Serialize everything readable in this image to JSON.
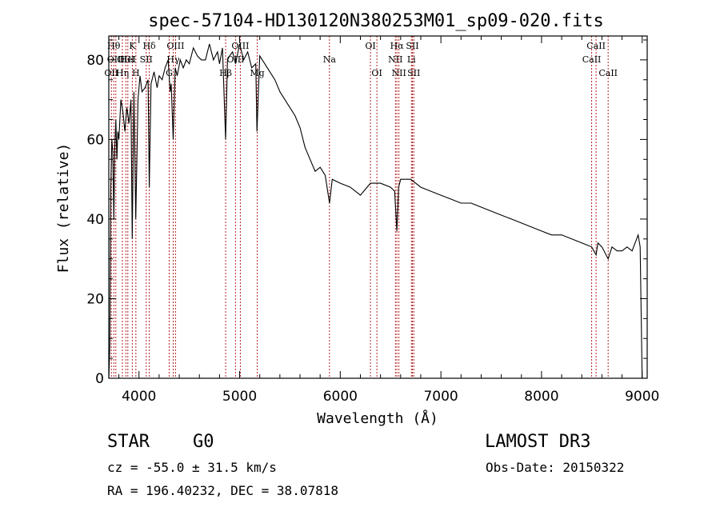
{
  "chart_data": {
    "type": "line",
    "title": "spec-57104-HD130120N380253M01_sp09-020.fits",
    "xlabel": "Wavelength (Å)",
    "ylabel": "Flux (relative)",
    "xlim": [
      3700,
      9050
    ],
    "ylim": [
      0,
      86
    ],
    "xticks": [
      4000,
      5000,
      6000,
      7000,
      8000,
      9000
    ],
    "yticks": [
      0,
      20,
      40,
      60,
      80
    ],
    "series": [
      {
        "name": "flux",
        "x": [
          3700,
          3710,
          3720,
          3730,
          3740,
          3750,
          3760,
          3770,
          3780,
          3790,
          3800,
          3820,
          3840,
          3860,
          3880,
          3900,
          3920,
          3933,
          3950,
          3968,
          3990,
          4010,
          4030,
          4060,
          4090,
          4102,
          4120,
          4150,
          4180,
          4200,
          4230,
          4260,
          4290,
          4310,
          4320,
          4340,
          4360,
          4380,
          4410,
          4440,
          4470,
          4500,
          4540,
          4580,
          4620,
          4660,
          4700,
          4740,
          4780,
          4800,
          4830,
          4861,
          4880,
          4900,
          4930,
          4960,
          5000,
          5040,
          5080,
          5120,
          5160,
          5172,
          5200,
          5250,
          5300,
          5350,
          5400,
          5450,
          5500,
          5550,
          5600,
          5650,
          5700,
          5750,
          5800,
          5850,
          5893,
          5920,
          6000,
          6100,
          6200,
          6300,
          6400,
          6500,
          6540,
          6563,
          6580,
          6600,
          6700,
          6800,
          6900,
          7000,
          7100,
          7200,
          7300,
          7400,
          7500,
          7600,
          7700,
          7800,
          7900,
          8000,
          8100,
          8200,
          8300,
          8400,
          8498,
          8542,
          8560,
          8600,
          8662,
          8700,
          8750,
          8800,
          8850,
          8900,
          8930,
          8960,
          8980,
          9000
        ],
        "values": [
          0,
          8,
          48,
          60,
          57,
          40,
          58,
          65,
          55,
          62,
          60,
          70,
          67,
          62,
          68,
          64,
          70,
          35,
          72,
          40,
          70,
          76,
          72,
          73,
          75,
          48,
          74,
          77,
          73,
          76,
          75,
          78,
          80,
          72,
          74,
          60,
          78,
          76,
          80,
          78,
          80,
          79,
          83,
          81,
          80,
          80,
          84,
          80,
          82,
          79,
          83,
          60,
          80,
          81,
          82,
          79,
          84,
          80,
          82,
          78,
          79,
          62,
          81,
          79,
          77,
          75,
          72,
          70,
          68,
          66,
          63,
          58,
          55,
          52,
          53,
          51,
          44,
          50,
          49,
          48,
          46,
          49,
          49,
          48,
          47,
          37,
          48,
          50,
          50,
          48,
          47,
          46,
          45,
          44,
          44,
          43,
          42,
          41,
          40,
          39,
          38,
          37,
          36,
          36,
          35,
          34,
          33,
          31,
          34,
          33,
          30,
          33,
          32,
          32,
          33,
          32,
          34,
          36,
          33,
          0
        ]
      }
    ],
    "lines": [
      {
        "wl": 3726,
        "label": "OII",
        "row": 3
      },
      {
        "wl": 3750,
        "label": "Hθ",
        "row": 1
      },
      {
        "wl": 3770,
        "label": "OIII",
        "row": 2
      },
      {
        "wl": 3835,
        "label": "Hη",
        "row": 3
      },
      {
        "wl": 3869,
        "label": "OIII",
        "row": 2
      },
      {
        "wl": 3889,
        "label": "HeI",
        "row": 2
      },
      {
        "wl": 3934,
        "label": "K",
        "row": 1
      },
      {
        "wl": 3969,
        "label": "H",
        "row": 3
      },
      {
        "wl": 4072,
        "label": "SII",
        "row": 2
      },
      {
        "wl": 4102,
        "label": "Hδ",
        "row": 1
      },
      {
        "wl": 4300,
        "label": "G",
        "row": 3
      },
      {
        "wl": 4340,
        "label": "Hγ",
        "row": 2
      },
      {
        "wl": 4363,
        "label": "OIII",
        "row": 1
      },
      {
        "wl": 4861,
        "label": "Hβ",
        "row": 3
      },
      {
        "wl": 4959,
        "label": "OIII",
        "row": 2
      },
      {
        "wl": 5007,
        "label": "OIII",
        "row": 1
      },
      {
        "wl": 5175,
        "label": "Mg",
        "row": 3
      },
      {
        "wl": 5893,
        "label": "Na",
        "row": 2
      },
      {
        "wl": 6300,
        "label": "OI",
        "row": 1
      },
      {
        "wl": 6364,
        "label": "OI",
        "row": 3
      },
      {
        "wl": 6548,
        "label": "NII",
        "row": 2
      },
      {
        "wl": 6563,
        "label": "Hα",
        "row": 1
      },
      {
        "wl": 6583,
        "label": "NII",
        "row": 3
      },
      {
        "wl": 6707,
        "label": "Li",
        "row": 2
      },
      {
        "wl": 6717,
        "label": "SII",
        "row": 1
      },
      {
        "wl": 6731,
        "label": "SII",
        "row": 3
      },
      {
        "wl": 8498,
        "label": "CaII",
        "row": 2
      },
      {
        "wl": 8542,
        "label": "CaII",
        "row": 1
      },
      {
        "wl": 8662,
        "label": "CaII",
        "row": 3
      }
    ]
  },
  "info": {
    "class_label": "STAR",
    "subclass": "G0",
    "survey": "LAMOST DR3",
    "redshift": "cz = -55.0 ± 31.5 km/s",
    "obs_date": "Obs-Date: 20150322",
    "coords": "RA = 196.40232, DEC =  38.07818"
  },
  "colors": {
    "line_marker": "#b22222",
    "spectrum": "#000000"
  }
}
